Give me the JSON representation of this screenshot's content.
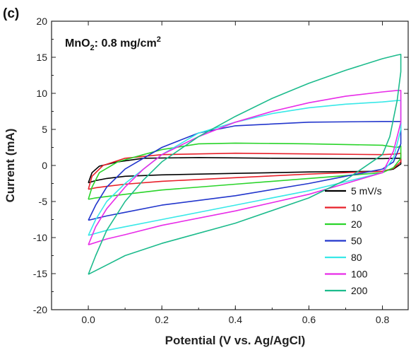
{
  "chart_data": {
    "type": "line",
    "panel_label": "(c)",
    "annotation": {
      "main": "MnO",
      "sub": "2",
      "rest": ": 0.8 mg/cm",
      "sup": "2"
    },
    "xlabel": "Potential (V vs. Ag/AgCl)",
    "ylabel": "Current (mA)",
    "xlim": [
      -0.1,
      0.87
    ],
    "ylim": [
      -20,
      20
    ],
    "xticks": [
      0.0,
      0.2,
      0.4,
      0.6,
      0.8
    ],
    "xtick_labels": [
      "0.0",
      "0.2",
      "0.4",
      "0.6",
      "0.8"
    ],
    "yticks": [
      -20,
      -15,
      -10,
      -5,
      0,
      5,
      10,
      15,
      20
    ],
    "ytick_labels": [
      "-20",
      "-15",
      "-10",
      "-5",
      "0",
      "5",
      "10",
      "15",
      "20"
    ],
    "grid": false,
    "legend_position": "bottom-right",
    "series": [
      {
        "name": "5 mV/s",
        "color": "#000000",
        "x": [
          0.0,
          0.01,
          0.03,
          0.08,
          0.15,
          0.3,
          0.5,
          0.7,
          0.8,
          0.84,
          0.85,
          0.85,
          0.83,
          0.8,
          0.6,
          0.4,
          0.2,
          0.1,
          0.05,
          0.02,
          0.0
        ],
        "y": [
          -2.4,
          -1.0,
          -0.1,
          0.5,
          1.0,
          1.1,
          1.0,
          0.95,
          0.95,
          1.0,
          1.0,
          0.2,
          -0.5,
          -0.8,
          -0.9,
          -1.1,
          -1.3,
          -1.5,
          -1.8,
          -2.1,
          -2.4
        ]
      },
      {
        "name": "10",
        "color": "#e8202a",
        "x": [
          0.0,
          0.01,
          0.04,
          0.1,
          0.2,
          0.4,
          0.6,
          0.8,
          0.84,
          0.85,
          0.85,
          0.83,
          0.8,
          0.6,
          0.4,
          0.2,
          0.1,
          0.05,
          0.02,
          0.0
        ],
        "y": [
          -3.3,
          -1.5,
          0.0,
          1.0,
          1.5,
          1.7,
          1.6,
          1.5,
          1.6,
          1.7,
          0.5,
          -0.4,
          -0.8,
          -1.2,
          -1.7,
          -2.2,
          -2.6,
          -2.9,
          -3.1,
          -3.3
        ]
      },
      {
        "name": "20",
        "color": "#2ad42a",
        "x": [
          0.0,
          0.01,
          0.03,
          0.08,
          0.15,
          0.2,
          0.3,
          0.4,
          0.6,
          0.8,
          0.84,
          0.85,
          0.85,
          0.83,
          0.8,
          0.6,
          0.4,
          0.2,
          0.1,
          0.05,
          0.02,
          0.0
        ],
        "y": [
          -4.7,
          -3.0,
          -1.0,
          0.5,
          1.5,
          2.2,
          3.0,
          3.1,
          3.0,
          2.8,
          2.5,
          2.7,
          1.0,
          -0.3,
          -1.0,
          -1.8,
          -2.6,
          -3.4,
          -4.0,
          -4.3,
          -4.5,
          -4.7
        ]
      },
      {
        "name": "50",
        "color": "#2236cc",
        "x": [
          0.0,
          0.02,
          0.05,
          0.1,
          0.15,
          0.2,
          0.25,
          0.3,
          0.4,
          0.6,
          0.8,
          0.85,
          0.85,
          0.83,
          0.8,
          0.6,
          0.4,
          0.2,
          0.1,
          0.05,
          0.0
        ],
        "y": [
          -7.6,
          -5.5,
          -3.0,
          -0.5,
          1.0,
          2.5,
          3.5,
          4.5,
          5.5,
          6.0,
          6.1,
          6.1,
          3.0,
          0.5,
          -0.5,
          -2.5,
          -4.2,
          -5.5,
          -6.5,
          -7.0,
          -7.6
        ]
      },
      {
        "name": "80",
        "color": "#38e8e8",
        "x": [
          0.0,
          0.02,
          0.05,
          0.1,
          0.15,
          0.2,
          0.25,
          0.3,
          0.4,
          0.5,
          0.6,
          0.7,
          0.8,
          0.84,
          0.85,
          0.85,
          0.83,
          0.8,
          0.6,
          0.4,
          0.2,
          0.1,
          0.05,
          0.0
        ],
        "y": [
          -9.7,
          -7.5,
          -5.0,
          -2.5,
          -0.5,
          1.5,
          3.0,
          4.5,
          6.0,
          7.2,
          8.0,
          8.5,
          8.8,
          9.0,
          9.0,
          5.0,
          1.0,
          -1.0,
          -3.5,
          -5.5,
          -7.5,
          -8.5,
          -9.0,
          -9.7
        ]
      },
      {
        "name": "100",
        "color": "#e82ce8",
        "x": [
          0.0,
          0.02,
          0.05,
          0.1,
          0.15,
          0.2,
          0.3,
          0.4,
          0.5,
          0.6,
          0.7,
          0.8,
          0.84,
          0.85,
          0.85,
          0.83,
          0.8,
          0.6,
          0.4,
          0.2,
          0.1,
          0.05,
          0.0
        ],
        "y": [
          -11.0,
          -8.5,
          -6.0,
          -3.0,
          -0.5,
          1.5,
          4.0,
          6.0,
          7.5,
          8.7,
          9.6,
          10.2,
          10.4,
          10.4,
          6.0,
          2.0,
          -1.0,
          -4.0,
          -6.3,
          -8.3,
          -9.6,
          -10.2,
          -11.0
        ]
      },
      {
        "name": "200",
        "color": "#1cbb8c",
        "x": [
          0.0,
          0.02,
          0.05,
          0.1,
          0.15,
          0.2,
          0.3,
          0.4,
          0.5,
          0.6,
          0.7,
          0.8,
          0.84,
          0.85,
          0.85,
          0.84,
          0.82,
          0.8,
          0.7,
          0.6,
          0.4,
          0.2,
          0.1,
          0.05,
          0.0
        ],
        "y": [
          -15.1,
          -12.5,
          -9.0,
          -5.0,
          -2.0,
          0.5,
          4.0,
          6.8,
          9.3,
          11.4,
          13.2,
          14.8,
          15.3,
          15.4,
          13.0,
          9.0,
          4.0,
          1.5,
          -2.0,
          -4.5,
          -8.0,
          -10.8,
          -12.5,
          -13.8,
          -15.1
        ]
      }
    ]
  }
}
